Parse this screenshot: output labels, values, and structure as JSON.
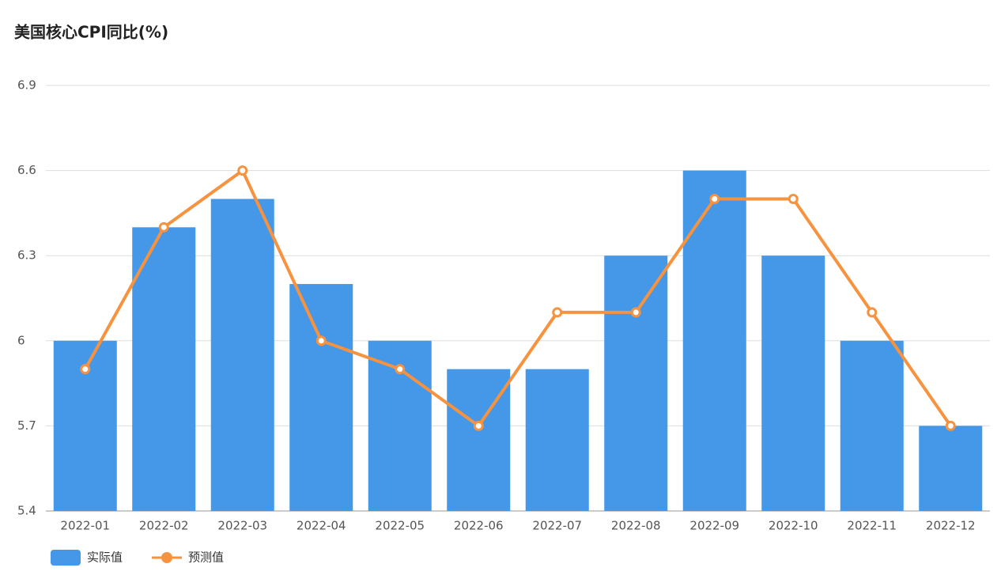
{
  "chart_data": {
    "type": "bar",
    "title": "美国核心CPI同比(%)",
    "categories": [
      "2022-01",
      "2022-02",
      "2022-03",
      "2022-04",
      "2022-05",
      "2022-06",
      "2022-07",
      "2022-08",
      "2022-09",
      "2022-10",
      "2022-11",
      "2022-12"
    ],
    "series": [
      {
        "name": "实际值",
        "type": "bar",
        "color": "#4597e8",
        "values": [
          6.0,
          6.4,
          6.5,
          6.2,
          6.0,
          5.9,
          5.9,
          6.3,
          6.6,
          6.3,
          6.0,
          5.7
        ]
      },
      {
        "name": "预测值",
        "type": "line",
        "color": "#f7923f",
        "values": [
          5.9,
          6.4,
          6.6,
          6.0,
          5.9,
          5.7,
          6.1,
          6.1,
          6.5,
          6.5,
          6.1,
          5.7
        ]
      }
    ],
    "ylim": [
      5.4,
      6.9
    ],
    "yticks": [
      5.4,
      5.7,
      6,
      6.3,
      6.6,
      6.9
    ],
    "grid": true,
    "legend": "bottom-left"
  }
}
